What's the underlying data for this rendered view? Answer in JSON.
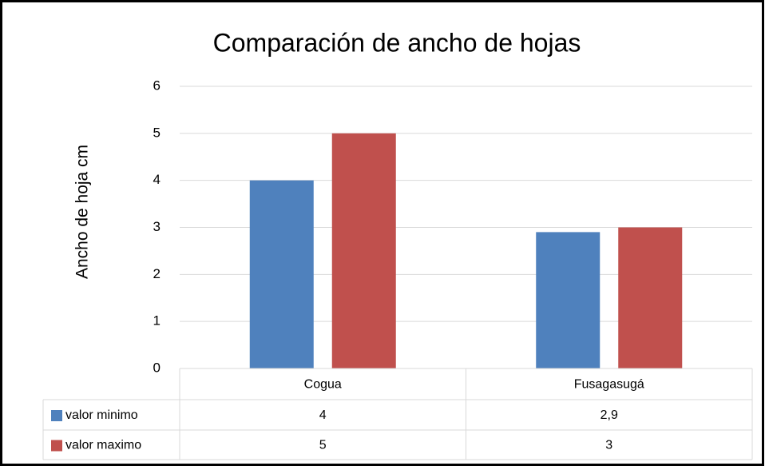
{
  "chart_data": {
    "type": "bar",
    "title": "Comparación de ancho de hojas",
    "y_label": "Ancho de hoja cm",
    "categories": [
      "Cogua",
      "Fusagasugá"
    ],
    "series": [
      {
        "name": "valor minimo",
        "color": "#4f81bd",
        "values": [
          4,
          2.9
        ],
        "value_labels": [
          "4",
          "2,9"
        ]
      },
      {
        "name": "valor maximo",
        "color": "#c0504d",
        "values": [
          5,
          3
        ]
      }
    ],
    "ylim": [
      0,
      6
    ],
    "yticks": [
      0,
      1,
      2,
      3,
      4,
      5,
      6
    ],
    "grid": true,
    "data_table": true
  }
}
